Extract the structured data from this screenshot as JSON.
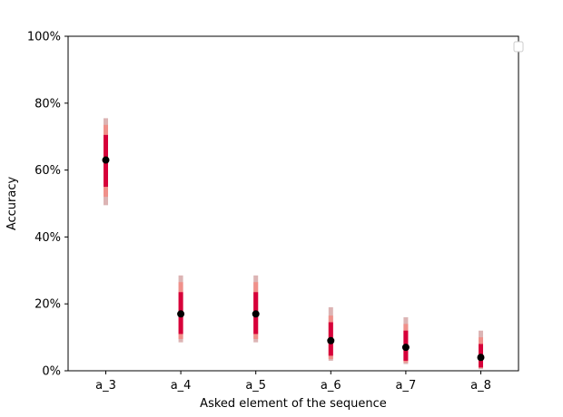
{
  "chart_data": {
    "type": "scatter",
    "title": "",
    "xlabel": "Asked element of the sequence",
    "ylabel": "Accuracy",
    "categories": [
      "a_3",
      "a_4",
      "a_5",
      "a_6",
      "a_7",
      "a_8"
    ],
    "ylim": [
      0,
      100
    ],
    "yticks": [
      "0%",
      "20%",
      "40%",
      "60%",
      "80%",
      "100%"
    ],
    "ytick_values": [
      0,
      20,
      40,
      60,
      80,
      100
    ],
    "grid": false,
    "legend": "top-right (empty)",
    "colors": {
      "point": "#000000",
      "interval_inner": "#d7003a",
      "interval_middle": "#f0908a",
      "interval_outer": "#dcb4b4"
    },
    "series": [
      {
        "values": [
          63,
          17,
          17,
          9,
          7,
          4
        ],
        "intervals_inner": [
          [
            55,
            70.5
          ],
          [
            11,
            23.5
          ],
          [
            11,
            23.5
          ],
          [
            4.5,
            14.5
          ],
          [
            3,
            12
          ],
          [
            1,
            8
          ]
        ],
        "intervals_middle": [
          [
            52,
            73.5
          ],
          [
            9.5,
            26.5
          ],
          [
            9.5,
            26.5
          ],
          [
            3.5,
            16.5
          ],
          [
            2.5,
            14
          ],
          [
            0.8,
            10
          ]
        ],
        "intervals_outer": [
          [
            49.5,
            75.5
          ],
          [
            8.5,
            28.5
          ],
          [
            8.5,
            28.5
          ],
          [
            3,
            19
          ],
          [
            2,
            16
          ],
          [
            0.5,
            12
          ]
        ]
      }
    ]
  }
}
